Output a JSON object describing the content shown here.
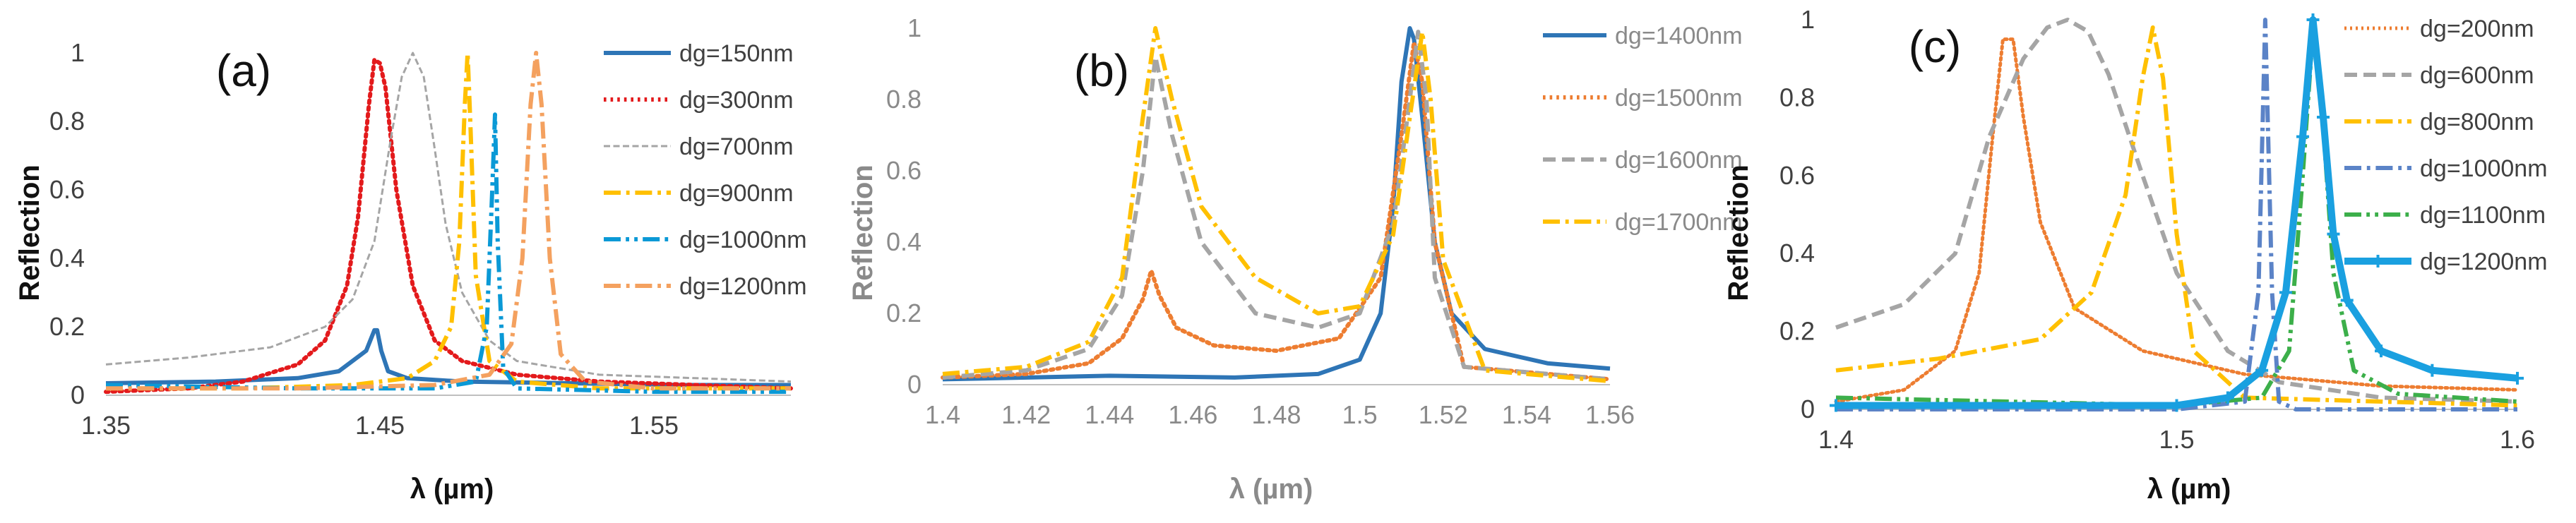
{
  "colors": {
    "blue": "#2E75B6",
    "red": "#E31A1C",
    "grey": "#A5A5A5",
    "gold": "#FFC000",
    "cyan": "#0A99D6",
    "orange": "#F4A15F",
    "orange2": "#ED7D31",
    "slate": "#5B83C7",
    "green": "#3CAF4A",
    "lightblue": "#1AA0E0"
  },
  "chart_data": [
    {
      "type": "line",
      "panel_label": "(a)",
      "xlabel": "λ (µm)",
      "ylabel": "Reflection",
      "xlim": [
        1.35,
        1.6
      ],
      "ylim": [
        0,
        1
      ],
      "xticks": [
        "1.35",
        "1.45",
        "1.55"
      ],
      "yticks": [
        "0",
        "0.2",
        "0.4",
        "0.6",
        "0.8",
        "1"
      ],
      "series": [
        {
          "name": "dg=150nm",
          "color": "blue",
          "style": "solid",
          "width": 6,
          "x": [
            1.35,
            1.39,
            1.42,
            1.435,
            1.445,
            1.448,
            1.449,
            1.4505,
            1.453,
            1.46,
            1.48,
            1.52,
            1.56,
            1.6
          ],
          "y": [
            0.035,
            0.04,
            0.05,
            0.07,
            0.13,
            0.19,
            0.19,
            0.13,
            0.07,
            0.05,
            0.04,
            0.035,
            0.03,
            0.03
          ]
        },
        {
          "name": "dg=300nm",
          "color": "red",
          "style": "dotted",
          "width": 6,
          "x": [
            1.35,
            1.38,
            1.4,
            1.42,
            1.43,
            1.438,
            1.442,
            1.446,
            1.448,
            1.45,
            1.452,
            1.456,
            1.462,
            1.47,
            1.48,
            1.5,
            1.53,
            1.6
          ],
          "y": [
            0.01,
            0.02,
            0.04,
            0.09,
            0.16,
            0.32,
            0.52,
            0.85,
            0.98,
            0.97,
            0.9,
            0.6,
            0.32,
            0.16,
            0.1,
            0.06,
            0.04,
            0.02
          ]
        },
        {
          "name": "dg=700nm",
          "color": "grey",
          "style": "dashed",
          "width": 3,
          "x": [
            1.35,
            1.38,
            1.41,
            1.43,
            1.44,
            1.448,
            1.454,
            1.458,
            1.462,
            1.466,
            1.47,
            1.474,
            1.48,
            1.49,
            1.5,
            1.53,
            1.6
          ],
          "y": [
            0.09,
            0.11,
            0.14,
            0.2,
            0.28,
            0.45,
            0.75,
            0.93,
            1.0,
            0.93,
            0.72,
            0.5,
            0.3,
            0.16,
            0.1,
            0.06,
            0.04
          ]
        },
        {
          "name": "dg=900nm",
          "color": "gold",
          "style": "dashdot",
          "width": 6,
          "x": [
            1.35,
            1.4,
            1.44,
            1.46,
            1.47,
            1.476,
            1.479,
            1.481,
            1.482,
            1.483,
            1.485,
            1.49,
            1.5,
            1.53,
            1.6
          ],
          "y": [
            0.02,
            0.02,
            0.03,
            0.05,
            0.1,
            0.2,
            0.45,
            0.85,
            1.0,
            0.8,
            0.35,
            0.1,
            0.04,
            0.02,
            0.02
          ]
        },
        {
          "name": "dg=1000nm",
          "color": "cyan",
          "style": "dashdotdot",
          "width": 6,
          "x": [
            1.35,
            1.42,
            1.47,
            1.485,
            1.489,
            1.491,
            1.492,
            1.493,
            1.495,
            1.5,
            1.55,
            1.6
          ],
          "y": [
            0.03,
            0.02,
            0.02,
            0.04,
            0.2,
            0.6,
            0.82,
            0.45,
            0.08,
            0.02,
            0.01,
            0.01
          ]
        },
        {
          "name": "dg=1200nm",
          "color": "orange",
          "style": "dashdot",
          "width": 6,
          "x": [
            1.35,
            1.42,
            1.47,
            1.49,
            1.498,
            1.502,
            1.505,
            1.507,
            1.509,
            1.512,
            1.516,
            1.525,
            1.55,
            1.6
          ],
          "y": [
            0.02,
            0.02,
            0.03,
            0.06,
            0.15,
            0.4,
            0.85,
            1.0,
            0.85,
            0.4,
            0.12,
            0.04,
            0.02,
            0.02
          ]
        }
      ]
    },
    {
      "type": "line",
      "panel_label": "(b)",
      "xlabel": "λ (µm)",
      "ylabel": "Reflection",
      "xlim": [
        1.4,
        1.56
      ],
      "ylim": [
        0,
        1
      ],
      "xticks": [
        "1.4",
        "1.42",
        "1.44",
        "1.46",
        "1.48",
        "1.5",
        "1.52",
        "1.54",
        "1.56"
      ],
      "yticks": [
        "0",
        "0.2",
        "0.4",
        "0.6",
        "0.8",
        "1"
      ],
      "series": [
        {
          "name": "dg=1400nm",
          "color": "blue",
          "style": "solid",
          "width": 6,
          "x": [
            1.4,
            1.44,
            1.47,
            1.49,
            1.5,
            1.505,
            1.508,
            1.51,
            1.512,
            1.513,
            1.515,
            1.518,
            1.522,
            1.53,
            1.545,
            1.56
          ],
          "y": [
            0.015,
            0.025,
            0.02,
            0.03,
            0.07,
            0.2,
            0.5,
            0.85,
            1.0,
            0.97,
            0.75,
            0.4,
            0.2,
            0.1,
            0.06,
            0.045
          ]
        },
        {
          "name": "dg=1500nm",
          "color": "orange2",
          "style": "dotted",
          "width": 6,
          "x": [
            1.4,
            1.42,
            1.435,
            1.443,
            1.448,
            1.45,
            1.452,
            1.456,
            1.465,
            1.48,
            1.495,
            1.505,
            1.51,
            1.513,
            1.515,
            1.518,
            1.525,
            1.56
          ],
          "y": [
            0.02,
            0.03,
            0.06,
            0.13,
            0.24,
            0.32,
            0.25,
            0.16,
            0.11,
            0.095,
            0.13,
            0.3,
            0.7,
            0.96,
            0.85,
            0.4,
            0.05,
            0.015
          ]
        },
        {
          "name": "dg=1600nm",
          "color": "grey",
          "style": "dashed",
          "width": 6,
          "x": [
            1.4,
            1.42,
            1.435,
            1.443,
            1.448,
            1.451,
            1.455,
            1.462,
            1.475,
            1.49,
            1.5,
            1.508,
            1.512,
            1.514,
            1.516,
            1.518,
            1.525,
            1.56
          ],
          "y": [
            0.02,
            0.04,
            0.1,
            0.25,
            0.6,
            0.92,
            0.7,
            0.4,
            0.2,
            0.16,
            0.2,
            0.45,
            0.8,
            0.99,
            0.8,
            0.3,
            0.05,
            0.015
          ]
        },
        {
          "name": "dg=1700nm",
          "color": "gold",
          "style": "dashdot",
          "width": 6,
          "x": [
            1.4,
            1.42,
            1.435,
            1.443,
            1.448,
            1.451,
            1.455,
            1.462,
            1.475,
            1.49,
            1.5,
            1.508,
            1.512,
            1.515,
            1.517,
            1.52,
            1.53,
            1.56
          ],
          "y": [
            0.03,
            0.05,
            0.12,
            0.3,
            0.75,
            1.0,
            0.8,
            0.5,
            0.3,
            0.2,
            0.22,
            0.42,
            0.75,
            0.99,
            0.8,
            0.35,
            0.04,
            0.01
          ]
        }
      ]
    },
    {
      "type": "line",
      "panel_label": "(c)",
      "xlabel": "λ (µm)",
      "ylabel": "Reflection",
      "xlim": [
        1.4,
        1.6
      ],
      "ylim": [
        0,
        1
      ],
      "xticks": [
        "1.4",
        "1.5",
        "1.6"
      ],
      "yticks": [
        "0",
        "0.2",
        "0.4",
        "0.6",
        "0.8",
        "1"
      ],
      "series": [
        {
          "name": "dg=200nm",
          "color": "orange2",
          "style": "dotted",
          "width": 5,
          "x": [
            1.4,
            1.42,
            1.435,
            1.442,
            1.446,
            1.449,
            1.452,
            1.455,
            1.46,
            1.47,
            1.49,
            1.52,
            1.56,
            1.6
          ],
          "y": [
            0.02,
            0.05,
            0.15,
            0.35,
            0.7,
            0.95,
            0.95,
            0.75,
            0.48,
            0.26,
            0.15,
            0.09,
            0.06,
            0.05
          ]
        },
        {
          "name": "dg=600nm",
          "color": "grey",
          "style": "dashed",
          "width": 6,
          "x": [
            1.4,
            1.42,
            1.435,
            1.445,
            1.455,
            1.462,
            1.468,
            1.474,
            1.48,
            1.49,
            1.5,
            1.515,
            1.53,
            1.56,
            1.6
          ],
          "y": [
            0.21,
            0.27,
            0.4,
            0.7,
            0.9,
            0.98,
            1.0,
            0.97,
            0.86,
            0.6,
            0.35,
            0.15,
            0.07,
            0.03,
            0.02
          ]
        },
        {
          "name": "dg=800nm",
          "color": "gold",
          "style": "dashdot",
          "width": 6,
          "x": [
            1.4,
            1.43,
            1.46,
            1.475,
            1.485,
            1.49,
            1.493,
            1.496,
            1.5,
            1.505,
            1.52,
            1.6
          ],
          "y": [
            0.1,
            0.13,
            0.18,
            0.3,
            0.55,
            0.85,
            0.98,
            0.85,
            0.45,
            0.15,
            0.03,
            0.01
          ]
        },
        {
          "name": "dg=1000nm",
          "color": "slate",
          "style": "dashdot",
          "width": 6,
          "x": [
            1.4,
            1.5,
            1.52,
            1.524,
            1.526,
            1.528,
            1.53,
            1.535,
            1.6
          ],
          "y": [
            0.0,
            0.0,
            0.02,
            0.3,
            1.0,
            0.3,
            0.02,
            0.0,
            0.0
          ]
        },
        {
          "name": "dg=1100nm",
          "color": "green",
          "style": "dashdotdot",
          "width": 6,
          "x": [
            1.4,
            1.5,
            1.525,
            1.533,
            1.537,
            1.54,
            1.542,
            1.546,
            1.552,
            1.565,
            1.6
          ],
          "y": [
            0.03,
            0.01,
            0.03,
            0.15,
            0.6,
            0.97,
            0.85,
            0.35,
            0.1,
            0.04,
            0.02
          ]
        },
        {
          "name": "dg=1200nm",
          "color": "lightblue",
          "style": "marker",
          "width": 10,
          "x": [
            1.4,
            1.5,
            1.515,
            1.525,
            1.532,
            1.537,
            1.54,
            1.543,
            1.546,
            1.55,
            1.56,
            1.575,
            1.6
          ],
          "y": [
            0.01,
            0.01,
            0.03,
            0.1,
            0.3,
            0.7,
            1.0,
            0.75,
            0.45,
            0.28,
            0.15,
            0.1,
            0.08
          ]
        }
      ]
    }
  ]
}
